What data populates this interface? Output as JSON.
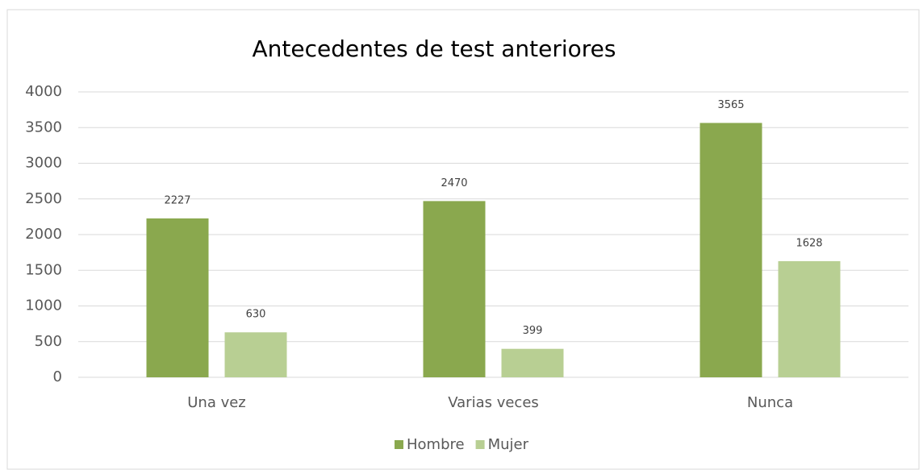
{
  "chart_data": {
    "type": "bar",
    "title": "Antecedentes de test anteriores",
    "categories": [
      "Una vez",
      "Varias veces",
      "Nunca"
    ],
    "series": [
      {
        "name": "Hombre",
        "color": "#8aa84e",
        "values": [
          2227,
          2470,
          3565
        ]
      },
      {
        "name": "Mujer",
        "color": "#b8cf93",
        "values": [
          630,
          399,
          1628
        ]
      }
    ],
    "ylim": [
      0,
      4000
    ],
    "yticks": [
      0,
      500,
      1000,
      1500,
      2000,
      2500,
      3000,
      3500,
      4000
    ],
    "grid": true,
    "legend": "bottom"
  }
}
